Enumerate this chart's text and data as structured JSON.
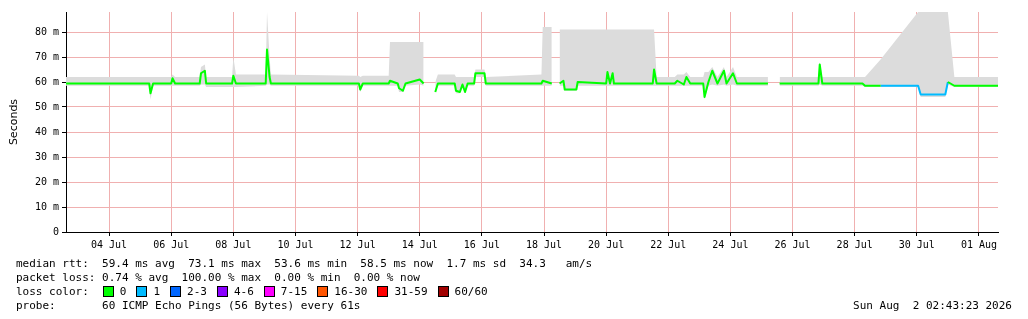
{
  "chart_data": {
    "type": "line",
    "ylabel": "Seconds",
    "legend_title": "loss color:",
    "legend": "bottom",
    "grid": true,
    "marker": "none",
    "line_style": "solid",
    "xlim": [
      "2026-07-03T02:43",
      "2026-08-02T02:43"
    ],
    "xticks": [
      {
        "value": "2026-07-04T12:00",
        "label": "04 Jul"
      },
      {
        "value": "2026-07-06T12:00",
        "label": "06 Jul"
      },
      {
        "value": "2026-07-08T12:00",
        "label": "08 Jul"
      },
      {
        "value": "2026-07-10T12:00",
        "label": "10 Jul"
      },
      {
        "value": "2026-07-12T12:00",
        "label": "12 Jul"
      },
      {
        "value": "2026-07-14T12:00",
        "label": "14 Jul"
      },
      {
        "value": "2026-07-16T12:00",
        "label": "16 Jul"
      },
      {
        "value": "2026-07-18T12:00",
        "label": "18 Jul"
      },
      {
        "value": "2026-07-20T12:00",
        "label": "20 Jul"
      },
      {
        "value": "2026-07-22T12:00",
        "label": "22 Jul"
      },
      {
        "value": "2026-07-24T12:00",
        "label": "24 Jul"
      },
      {
        "value": "2026-07-26T12:00",
        "label": "26 Jul"
      },
      {
        "value": "2026-07-28T12:00",
        "label": "28 Jul"
      },
      {
        "value": "2026-07-30T12:00",
        "label": "30 Jul"
      },
      {
        "value": "2026-08-01T12:00",
        "label": "01 Aug"
      }
    ],
    "ylim": [
      0,
      88
    ],
    "yticks": [
      0,
      {
        "value": 10,
        "label": "10 m"
      },
      {
        "value": 20,
        "label": "20 m"
      },
      {
        "value": 30,
        "label": "30 m"
      },
      {
        "value": 40,
        "label": "40 m"
      },
      {
        "value": 50,
        "label": "50 m"
      },
      {
        "value": 60,
        "label": "60 m"
      },
      {
        "value": 70,
        "label": "70 m"
      },
      {
        "value": 80,
        "label": "80 m"
      }
    ],
    "x": [
      "2026-07-03T02:43",
      "2026-07-05T19:00",
      "2026-07-05T20:00",
      "2026-07-05T22:00",
      "2026-07-06T12:00",
      "2026-07-06T13:00",
      "2026-07-06T15:00",
      "2026-07-07T10:00",
      "2026-07-07T11:00",
      "2026-07-07T14:00",
      "2026-07-07T15:00",
      "2026-07-08T11:00",
      "2026-07-08T12:00",
      "2026-07-08T14:00",
      "2026-07-09T13:00",
      "2026-07-09T14:00",
      "2026-07-09T16:00",
      "2026-07-09T17:00",
      "2026-07-12T13:00",
      "2026-07-12T14:00",
      "2026-07-12T16:00",
      "2026-07-13T12:00",
      "2026-07-13T13:00",
      "2026-07-13T19:00",
      "2026-07-13T20:00",
      "2026-07-13T23:00",
      "2026-07-14T01:00",
      "2026-07-14T12:00",
      "2026-07-14T15:00",
      "2026-07-14T18:00",
      "2026-07-15T00:00",
      "2026-07-15T02:00",
      "2026-07-15T15:00",
      "2026-07-15T16:00",
      "2026-07-15T19:00",
      "2026-07-15T21:00",
      "2026-07-15T23:00",
      "2026-07-16T01:00",
      "2026-07-16T06:00",
      "2026-07-16T07:00",
      "2026-07-16T14:00",
      "2026-07-16T15:00",
      "2026-07-18T10:00",
      "2026-07-18T11:00",
      "2026-07-18T18:00",
      "2026-07-18T20:00",
      "2026-07-19T00:00",
      "2026-07-19T03:00",
      "2026-07-19T04:00",
      "2026-07-19T13:00",
      "2026-07-19T14:00",
      "2026-07-20T12:00",
      "2026-07-20T13:00",
      "2026-07-20T15:00",
      "2026-07-20T17:00",
      "2026-07-20T18:00",
      "2026-07-22T00:00",
      "2026-07-22T01:00",
      "2026-07-22T03:00",
      "2026-07-22T17:00",
      "2026-07-22T19:00",
      "2026-07-23T00:00",
      "2026-07-23T02:00",
      "2026-07-23T05:00",
      "2026-07-23T15:00",
      "2026-07-23T16:00",
      "2026-07-23T19:00",
      "2026-07-23T22:00",
      "2026-07-24T02:00",
      "2026-07-24T07:00",
      "2026-07-24T09:00",
      "2026-07-24T14:00",
      "2026-07-24T17:00",
      "2026-07-25T17:00",
      "2026-07-25T20:00",
      "2026-07-26T02:00",
      "2026-07-27T08:00",
      "2026-07-27T09:00",
      "2026-07-27T11:00",
      "2026-07-28T18:00",
      "2026-07-28T20:00",
      "2026-07-29T08:00",
      "2026-07-30T13:00",
      "2026-07-30T15:00",
      "2026-07-31T10:00",
      "2026-07-31T12:00",
      "2026-07-31T17:00",
      "2026-08-02T02:43"
    ],
    "series": [
      {
        "name": "0",
        "color": "#00ff00",
        "values": [
          59.4,
          59.4,
          55.5,
          59.4,
          59.4,
          61.5,
          59.4,
          59.4,
          63.5,
          64.5,
          59.4,
          59.4,
          62.5,
          59.4,
          59.4,
          73,
          62,
          59.4,
          59.4,
          57,
          59.4,
          59.4,
          60.5,
          59.4,
          57.5,
          56.5,
          59.4,
          61,
          59.4,
          null,
          56,
          59.4,
          59.4,
          56.5,
          56,
          59,
          56,
          59.4,
          59.4,
          63.5,
          63.5,
          59.4,
          59.4,
          60.5,
          59.4,
          null,
          59.4,
          60.5,
          57,
          57,
          60,
          59.4,
          64,
          59.4,
          63.5,
          59.4,
          59.4,
          65,
          59.4,
          59.4,
          60.5,
          59,
          62,
          59.4,
          59.4,
          54,
          60,
          64.5,
          59.4,
          64.5,
          59.4,
          63.5,
          59.4,
          59.4,
          null,
          59.4,
          59.4,
          67,
          59.4,
          59.4,
          58.5,
          58.5,
          null,
          null,
          null,
          60,
          58.5,
          58.5
        ],
        "lower": [
          58.5,
          58.5,
          53,
          58.5,
          58.5,
          58.5,
          58.5,
          58.5,
          59,
          59,
          58,
          58,
          58,
          58,
          58.5,
          59,
          59,
          58.5,
          58.5,
          56,
          58.5,
          58.5,
          58.5,
          58.5,
          56,
          56,
          58.5,
          59,
          58.5,
          null,
          55.5,
          58.5,
          58.5,
          55.5,
          55.5,
          58,
          55.5,
          58.5,
          58.5,
          62,
          62,
          58.5,
          58.5,
          58.5,
          58.5,
          null,
          58.5,
          58.5,
          56.5,
          56.5,
          58.5,
          58.5,
          58.5,
          58.5,
          58.5,
          58.5,
          58.5,
          58.5,
          58.5,
          58.5,
          58.5,
          58.5,
          58.5,
          58.5,
          58.5,
          53,
          58.5,
          59,
          58.5,
          59,
          58.5,
          59,
          58.5,
          58.5,
          null,
          58.5,
          58.5,
          59,
          58.5,
          58.5,
          58,
          58,
          58,
          54,
          54,
          59,
          58,
          58
        ],
        "upper": [
          62,
          62,
          62,
          62,
          62,
          63,
          62,
          62,
          66,
          67,
          62,
          62,
          70,
          63,
          63,
          88,
          70,
          63,
          62.5,
          62,
          62.5,
          62.5,
          76,
          76,
          76,
          76,
          76,
          76,
          76,
          null,
          60,
          63,
          63,
          62,
          62,
          62,
          62,
          62,
          62,
          65,
          65,
          62,
          63,
          82,
          82,
          null,
          81,
          81,
          81,
          81,
          81,
          81,
          81,
          81,
          81,
          81,
          81,
          81,
          62,
          62,
          63,
          63,
          64,
          62,
          62,
          64,
          64,
          66,
          62,
          66,
          62,
          66,
          62,
          62,
          null,
          62,
          62,
          68,
          62,
          62,
          62,
          69,
          88,
          88,
          88,
          88,
          62,
          62
        ]
      },
      {
        "name": "1",
        "color": "#00bbff",
        "values": [
          null,
          null,
          null,
          null,
          null,
          null,
          null,
          null,
          null,
          null,
          null,
          null,
          null,
          null,
          null,
          null,
          null,
          null,
          null,
          null,
          null,
          null,
          null,
          null,
          null,
          null,
          null,
          null,
          null,
          null,
          null,
          null,
          null,
          null,
          null,
          null,
          null,
          null,
          null,
          null,
          null,
          null,
          null,
          null,
          null,
          null,
          null,
          null,
          null,
          null,
          null,
          null,
          null,
          null,
          null,
          null,
          null,
          null,
          null,
          null,
          null,
          null,
          null,
          null,
          null,
          null,
          null,
          null,
          null,
          null,
          null,
          null,
          null,
          null,
          null,
          null,
          null,
          null,
          null,
          null,
          null,
          58.5,
          58.5,
          55,
          55,
          60,
          null,
          null
        ]
      },
      {
        "name": "2-3",
        "color": "#0066ff",
        "values": [
          null,
          null,
          null,
          null,
          null,
          null,
          null,
          null,
          null,
          null,
          null,
          null,
          null,
          null,
          null,
          null,
          null,
          null,
          null,
          null,
          null,
          null,
          null,
          null,
          null,
          null,
          null,
          null,
          null,
          null,
          null,
          null,
          null,
          null,
          null,
          null,
          null,
          null,
          null,
          null,
          null,
          null,
          null,
          null,
          null,
          null,
          null,
          null,
          null,
          null,
          null,
          null,
          null,
          null,
          null,
          null,
          null,
          null,
          null,
          null,
          null,
          null,
          null,
          null,
          null,
          null,
          null,
          null,
          null,
          null,
          null,
          null,
          null,
          null,
          null,
          null,
          null,
          null,
          null,
          null,
          null,
          null,
          null,
          null,
          null,
          null,
          null,
          null
        ]
      },
      {
        "name": "4-6",
        "color": "#8a00ff",
        "values": [
          null,
          null,
          null,
          null,
          null,
          null,
          null,
          null,
          null,
          null,
          null,
          null,
          null,
          null,
          null,
          null,
          null,
          null,
          null,
          null,
          null,
          null,
          null,
          null,
          null,
          null,
          null,
          null,
          null,
          null,
          null,
          null,
          null,
          null,
          null,
          null,
          null,
          null,
          null,
          null,
          null,
          null,
          null,
          null,
          null,
          null,
          null,
          null,
          null,
          null,
          null,
          null,
          null,
          null,
          null,
          null,
          null,
          null,
          null,
          null,
          null,
          null,
          null,
          null,
          null,
          null,
          null,
          null,
          null,
          null,
          null,
          null,
          null,
          null,
          null,
          null,
          null,
          null,
          null,
          null,
          null,
          null,
          null,
          null,
          null,
          null,
          null,
          null
        ]
      },
      {
        "name": "7-15",
        "color": "#ff00ff",
        "values": [
          null,
          null,
          null,
          null,
          null,
          null,
          null,
          null,
          null,
          null,
          null,
          null,
          null,
          null,
          null,
          null,
          null,
          null,
          null,
          null,
          null,
          null,
          null,
          null,
          null,
          null,
          null,
          null,
          null,
          null,
          null,
          null,
          null,
          null,
          null,
          null,
          null,
          null,
          null,
          null,
          null,
          null,
          null,
          null,
          null,
          null,
          null,
          null,
          null,
          null,
          null,
          null,
          null,
          null,
          null,
          null,
          null,
          null,
          null,
          null,
          null,
          null,
          null,
          null,
          null,
          null,
          null,
          null,
          null,
          null,
          null,
          null,
          null,
          null,
          null,
          null,
          null,
          null,
          null,
          null,
          null,
          null,
          null,
          null,
          null,
          null,
          null,
          null
        ]
      },
      {
        "name": "16-30",
        "color": "#ff5500",
        "values": [
          null,
          null,
          null,
          null,
          null,
          null,
          null,
          null,
          null,
          null,
          null,
          null,
          null,
          null,
          null,
          null,
          null,
          null,
          null,
          null,
          null,
          null,
          null,
          null,
          null,
          null,
          null,
          null,
          null,
          null,
          null,
          null,
          null,
          null,
          null,
          null,
          null,
          null,
          null,
          null,
          null,
          null,
          null,
          null,
          null,
          null,
          null,
          null,
          null,
          null,
          null,
          null,
          null,
          null,
          null,
          null,
          null,
          null,
          null,
          null,
          null,
          null,
          null,
          null,
          null,
          null,
          null,
          null,
          null,
          null,
          null,
          null,
          null,
          null,
          null,
          null,
          null,
          null,
          null,
          null,
          null,
          null,
          null,
          null,
          null,
          null,
          null,
          null
        ]
      },
      {
        "name": "31-59",
        "color": "#ff0000",
        "values": [
          null,
          null,
          null,
          null,
          null,
          null,
          null,
          null,
          null,
          null,
          null,
          null,
          null,
          null,
          null,
          null,
          null,
          null,
          null,
          null,
          null,
          null,
          null,
          null,
          null,
          null,
          null,
          null,
          null,
          null,
          null,
          null,
          null,
          null,
          null,
          null,
          null,
          null,
          null,
          null,
          null,
          null,
          null,
          null,
          null,
          null,
          null,
          null,
          null,
          null,
          null,
          null,
          null,
          null,
          null,
          null,
          null,
          null,
          null,
          null,
          null,
          null,
          null,
          null,
          null,
          null,
          null,
          null,
          null,
          null,
          null,
          null,
          null,
          null,
          null,
          null,
          null,
          null,
          null,
          null,
          null,
          null,
          null,
          null,
          null,
          null,
          null,
          null
        ]
      },
      {
        "name": "60/60",
        "color": "#a10000",
        "values": [
          null,
          null,
          null,
          null,
          null,
          null,
          null,
          null,
          null,
          null,
          null,
          null,
          null,
          null,
          null,
          null,
          null,
          null,
          null,
          null,
          null,
          null,
          null,
          null,
          null,
          null,
          null,
          null,
          null,
          null,
          null,
          null,
          null,
          null,
          null,
          null,
          null,
          null,
          null,
          null,
          null,
          null,
          null,
          null,
          null,
          null,
          null,
          null,
          null,
          null,
          null,
          null,
          null,
          null,
          null,
          null,
          null,
          null,
          null,
          null,
          null,
          null,
          null,
          null,
          null,
          null,
          null,
          null,
          null,
          null,
          null,
          null,
          null,
          null,
          null,
          null,
          null,
          null,
          null,
          null,
          null,
          null,
          null,
          null,
          null,
          null,
          null,
          null
        ]
      }
    ],
    "annotations": [
      "median rtt:  59.4 ms avg  73.1 ms max  53.6 ms min  58.5 ms now  1.7 ms sd  34.3   am/s",
      "packet loss: 0.74 % avg  100.00 % max  0.00 % min  0.00 % now",
      "probe:       60 ICMP Echo Pings (56 Bytes) every 61s",
      "Sun Aug  2 02:43:23 2026"
    ]
  }
}
